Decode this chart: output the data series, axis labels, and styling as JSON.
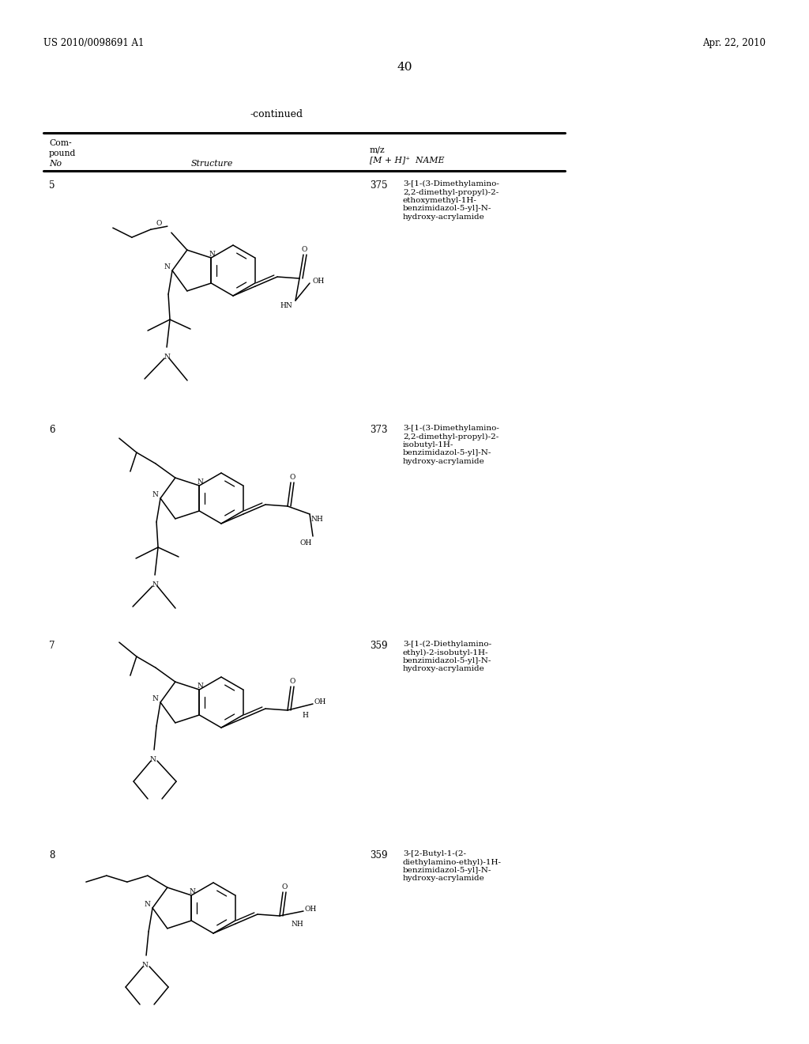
{
  "header_left": "US 2010/0098691 A1",
  "header_right": "Apr. 22, 2010",
  "page_num": "40",
  "continued": "-continued",
  "col_headers": {
    "comp_line1": "Com-",
    "comp_line2": "pound",
    "comp_line3": "No",
    "structure": "Structure",
    "mz_line1": "m/z",
    "mz_line2": "[M + H]⁺",
    "name_col": "NAME"
  },
  "compounds": [
    {
      "no": "5",
      "mz": "375",
      "name": "3-[1-(3-Dimethylamino-\n2,2-dimethyl-propyl)-2-\nethoxymethyl-1H-\nbenzimidazol-5-yl]-N-\nhydroxy-acrylamide"
    },
    {
      "no": "6",
      "mz": "373",
      "name": "3-[1-(3-Dimethylamino-\n2,2-dimethyl-propyl)-2-\nisobutyl-1H-\nbenzimidazol-5-yl]-N-\nhydroxy-acrylamide"
    },
    {
      "no": "7",
      "mz": "359",
      "name": "3-[1-(2-Diethylamino-\nethyl)-2-isobutyl-1H-\nbenzimidazol-5-yl]-N-\nhydroxy-acrylamide"
    },
    {
      "no": "8",
      "mz": "359",
      "name": "3-[2-Butyl-1-(2-\ndiethylamino-ethyl)-1H-\nbenzimidazol-5-yl]-N-\nhydroxy-acrylamide"
    }
  ],
  "bg": "#ffffff",
  "fg": "#000000"
}
